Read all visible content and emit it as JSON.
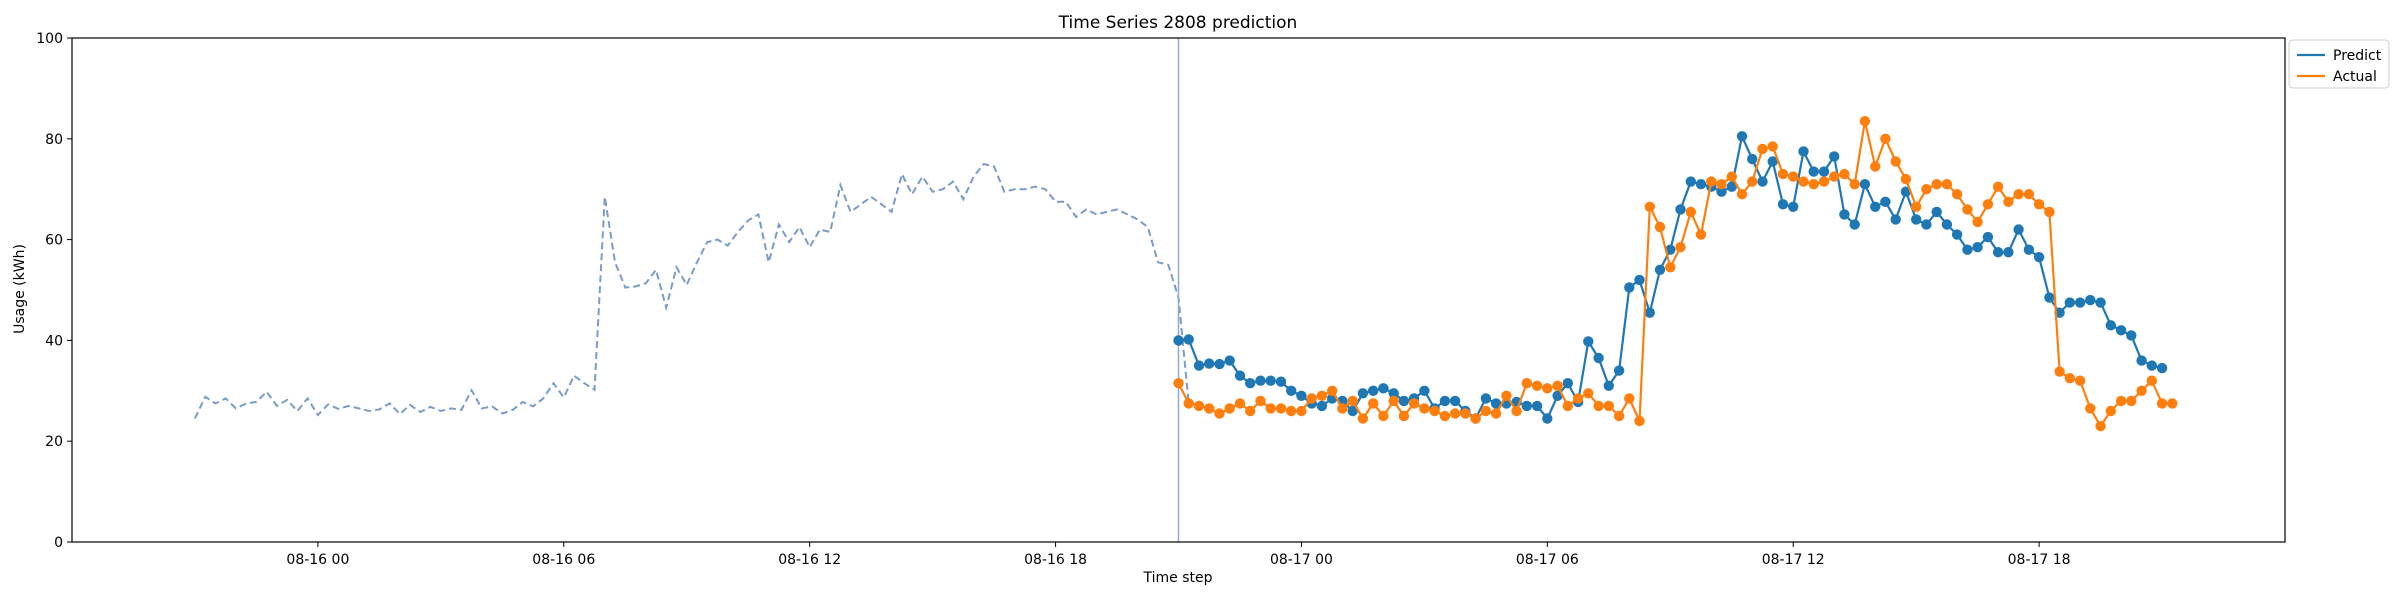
{
  "chart_data": {
    "type": "line",
    "title": "Time Series 2808 prediction",
    "xlabel": "Time step",
    "ylabel": "Usage (kWh)",
    "ylim": [
      0,
      100
    ],
    "yticks": [
      0,
      20,
      40,
      60,
      80,
      100
    ],
    "xlim": [
      "2023-08-15 18:00",
      "2023-08-18 00:00"
    ],
    "xticks": [
      {
        "t": "2023-08-16 00:00",
        "label": "08-16 00"
      },
      {
        "t": "2023-08-16 06:00",
        "label": "08-16 06"
      },
      {
        "t": "2023-08-16 12:00",
        "label": "08-16 12"
      },
      {
        "t": "2023-08-16 18:00",
        "label": "08-16 18"
      },
      {
        "t": "2023-08-17 00:00",
        "label": "08-17 00"
      },
      {
        "t": "2023-08-17 06:00",
        "label": "08-17 06"
      },
      {
        "t": "2023-08-17 12:00",
        "label": "08-17 12"
      },
      {
        "t": "2023-08-17 18:00",
        "label": "08-17 18"
      }
    ],
    "grid": false,
    "legend": {
      "placement": "top-right outside"
    },
    "forecast_start": "2023-08-16 21:00",
    "history": {
      "style": "dashed",
      "color": "#7a9cc8",
      "start": "2023-08-15 21:00",
      "step_minutes": 15,
      "values": [
        24.5,
        28.8,
        27.5,
        28.5,
        26.5,
        27.5,
        27.8,
        29.8,
        27.0,
        28.2,
        26.0,
        28.5,
        25.2,
        27.3,
        26.4,
        27.0,
        26.5,
        26.0,
        26.3,
        27.5,
        25.4,
        27.2,
        25.8,
        26.8,
        26.0,
        26.5,
        26.2,
        30.1,
        26.5,
        26.9,
        25.5,
        26.2,
        27.8,
        26.9,
        28.5,
        31.5,
        28.7,
        33.0,
        31.5,
        30.2,
        68.5,
        55.5,
        50.5,
        50.7,
        51.3,
        54.0,
        46.5,
        54.5,
        51.0,
        55.5,
        59.5,
        60.0,
        58.8,
        61.5,
        63.8,
        65.0,
        55.5,
        63.0,
        59.5,
        62.5,
        58.5,
        62.0,
        61.5,
        70.8,
        65.5,
        67.0,
        68.5,
        67.0,
        65.5,
        73.0,
        69.0,
        72.5,
        69.5,
        70.0,
        71.5,
        68.0,
        72.5,
        75.0,
        74.5,
        69.5,
        70.0,
        70.0,
        70.5,
        70.0,
        67.5,
        67.5,
        64.5,
        66.0,
        65.0,
        65.5,
        66.0,
        65.0,
        64.0,
        62.5,
        55.5,
        55.0,
        48.5,
        27.5
      ]
    },
    "series": [
      {
        "name": "Predict",
        "color": "#1f77b4",
        "start": "2023-08-16 21:00",
        "step_minutes": 15,
        "values": [
          40.0,
          40.2,
          35.0,
          35.4,
          35.3,
          36.0,
          33.0,
          31.5,
          32.0,
          32.0,
          31.8,
          30.0,
          29.0,
          27.5,
          27.0,
          28.5,
          28.0,
          26.0,
          29.5,
          30.0,
          30.5,
          29.5,
          28.0,
          28.5,
          30.0,
          26.5,
          28.0,
          28.0,
          26.0,
          24.5,
          28.5,
          27.5,
          27.5,
          27.8,
          27.0,
          27.0,
          24.5,
          29.0,
          31.5,
          27.8,
          39.8,
          36.5,
          31.0,
          34.0,
          50.5,
          52.0,
          45.5,
          54.0,
          58.0,
          66.0,
          71.5,
          71.0,
          70.5,
          69.5,
          70.5,
          80.5,
          76.0,
          71.5,
          75.5,
          67.0,
          66.5,
          77.5,
          73.5,
          73.5,
          76.5,
          65.0,
          63.0,
          71.0,
          66.5,
          67.5,
          64.0,
          69.5,
          64.0,
          63.0,
          65.5,
          63.0,
          61.0,
          58.0,
          58.5,
          60.5,
          57.5,
          57.5,
          62.0,
          58.0,
          56.5,
          48.5,
          45.5,
          47.5,
          47.5,
          48.0,
          47.5,
          43.0,
          42.0,
          41.0,
          36.0,
          35.0,
          34.5
        ]
      },
      {
        "name": "Actual",
        "color": "#ff7f0e",
        "start": "2023-08-16 21:00",
        "step_minutes": 15,
        "values": [
          31.5,
          27.5,
          27.0,
          26.5,
          25.5,
          26.5,
          27.5,
          26.0,
          28.0,
          26.5,
          26.5,
          26.0,
          26.0,
          28.5,
          29.0,
          30.0,
          26.5,
          28.0,
          24.5,
          27.5,
          25.0,
          28.0,
          25.0,
          27.5,
          26.5,
          26.0,
          25.0,
          25.5,
          25.5,
          24.5,
          26.0,
          25.5,
          29.0,
          26.0,
          31.5,
          31.0,
          30.5,
          31.0,
          27.0,
          28.5,
          29.5,
          27.0,
          27.0,
          25.0,
          28.5,
          24.0,
          66.5,
          62.5,
          54.5,
          58.5,
          65.5,
          61.0,
          71.5,
          71.0,
          72.5,
          69.0,
          71.5,
          78.0,
          78.5,
          73.0,
          72.5,
          71.5,
          71.0,
          71.5,
          72.5,
          73.0,
          71.0,
          83.5,
          74.5,
          80.0,
          75.5,
          72.0,
          66.5,
          70.0,
          71.0,
          71.0,
          69.0,
          66.0,
          63.5,
          67.0,
          70.5,
          67.5,
          69.0,
          69.0,
          67.0,
          65.5,
          33.8,
          32.5,
          32.0,
          26.5,
          23.0,
          26.0,
          28.0,
          28.0,
          30.0,
          32.0,
          27.5,
          27.5
        ]
      }
    ]
  }
}
